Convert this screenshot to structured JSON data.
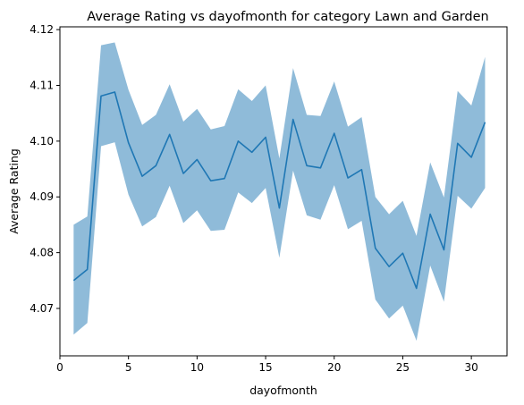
{
  "chart_data": {
    "type": "line",
    "title": "Average Rating vs dayofmonth for category Lawn and Garden",
    "xlabel": "dayofmonth",
    "ylabel": "Average Rating",
    "xlim": [
      0.0,
      32.6
    ],
    "ylim": [
      4.0615,
      4.1205
    ],
    "xticks": [
      0,
      5,
      10,
      15,
      20,
      25,
      30
    ],
    "yticks": [
      4.07,
      4.08,
      4.09,
      4.1,
      4.11,
      4.12
    ],
    "ytick_labels": [
      "4.07",
      "4.08",
      "4.09",
      "4.10",
      "4.11",
      "4.12"
    ],
    "grid": false,
    "colors": {
      "line": "#1f77b4",
      "band": "#1f77b4"
    },
    "series": [
      {
        "x": [
          1,
          2,
          3,
          4,
          5,
          6,
          7,
          8,
          9,
          10,
          11,
          12,
          13,
          14,
          15,
          16,
          17,
          18,
          19,
          20,
          21,
          22,
          23,
          24,
          25,
          26,
          27,
          28,
          29,
          30,
          31
        ],
        "values": [
          4.075,
          4.077,
          4.1081,
          4.1088,
          4.0997,
          4.0937,
          4.0956,
          4.1012,
          4.0942,
          4.0967,
          4.0929,
          4.0933,
          4.1,
          4.098,
          4.1007,
          4.088,
          4.1039,
          4.0956,
          4.0952,
          4.1014,
          4.0934,
          4.0949,
          4.0808,
          4.0775,
          4.0799,
          4.0736,
          4.0869,
          4.0805,
          4.0996,
          4.0971,
          4.1034
        ],
        "lower": [
          4.0653,
          4.0674,
          4.0991,
          4.0998,
          4.0904,
          4.0847,
          4.0864,
          4.092,
          4.0853,
          4.0876,
          4.0839,
          4.0841,
          4.0908,
          4.0889,
          4.0916,
          4.0791,
          4.0947,
          4.0867,
          4.0859,
          4.0921,
          4.0842,
          4.0857,
          4.0716,
          4.0682,
          4.0705,
          4.0642,
          4.0777,
          4.0712,
          4.0902,
          4.0879,
          4.0916
        ],
        "upper": [
          4.085,
          4.0865,
          4.1172,
          4.1177,
          4.1092,
          4.1029,
          4.1047,
          4.1102,
          4.1035,
          4.1058,
          4.1021,
          4.1027,
          4.1093,
          4.1072,
          4.11,
          4.0969,
          4.1131,
          4.1047,
          4.1045,
          4.1107,
          4.1026,
          4.1043,
          4.09,
          4.0869,
          4.0893,
          4.083,
          4.0962,
          4.0899,
          4.109,
          4.1064,
          4.1151
        ]
      }
    ]
  }
}
